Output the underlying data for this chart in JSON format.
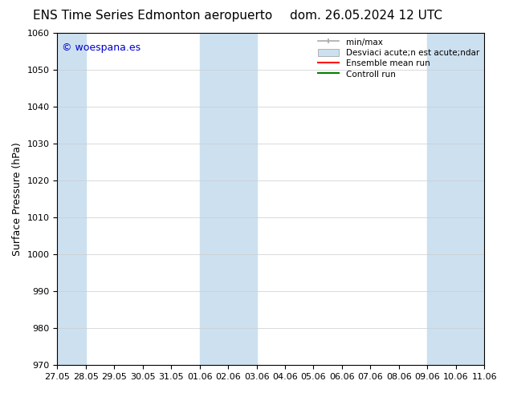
{
  "title_left": "ENS Time Series Edmonton aeropuerto",
  "title_right": "dom. 26.05.2024 12 UTC",
  "ylabel": "Surface Pressure (hPa)",
  "ylim": [
    970,
    1060
  ],
  "yticks": [
    970,
    980,
    990,
    1000,
    1010,
    1020,
    1030,
    1040,
    1050,
    1060
  ],
  "xtick_labels": [
    "27.05",
    "28.05",
    "29.05",
    "30.05",
    "31.05",
    "01.06",
    "02.06",
    "03.06",
    "04.06",
    "05.06",
    "06.06",
    "07.06",
    "08.06",
    "09.06",
    "10.06",
    "11.06"
  ],
  "background_color": "#ffffff",
  "plot_bg_color": "#ffffff",
  "shaded_bands": [
    {
      "xstart": 0,
      "xend": 1,
      "color": "#cce0f0"
    },
    {
      "xstart": 5,
      "xend": 7,
      "color": "#cce0f0"
    },
    {
      "xstart": 13,
      "xend": 15,
      "color": "#cce0f0"
    }
  ],
  "watermark_text": "© woespana.es",
  "watermark_color": "#0000cc",
  "legend_min_max_label": "min/max",
  "legend_desv_label": "Desviaci acute;n est acute;ndar",
  "legend_ensemble_label": "Ensemble mean run",
  "legend_control_label": "Controll run",
  "legend_min_max_color": "#aaaaaa",
  "legend_desv_color": "#cce0f0",
  "legend_ensemble_color": "#ff0000",
  "legend_control_color": "#008000",
  "title_fontsize": 11,
  "tick_fontsize": 8,
  "ylabel_fontsize": 9,
  "watermark_fontsize": 9,
  "legend_fontsize": 7.5
}
